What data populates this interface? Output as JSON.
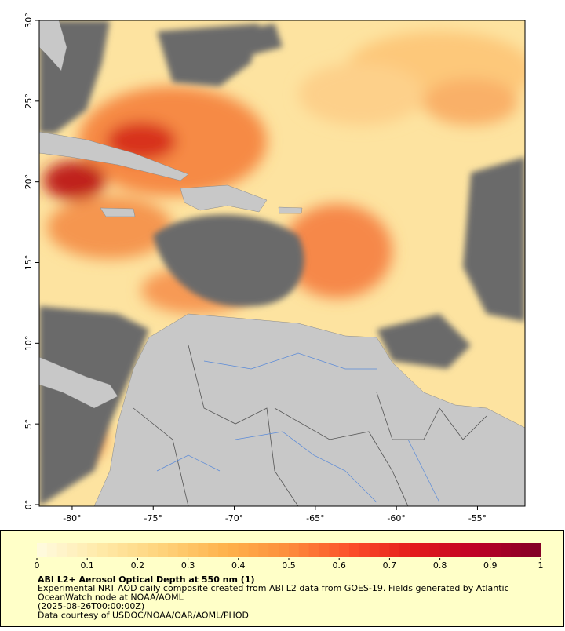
{
  "map": {
    "xlim": [
      -82.03,
      -52.07
    ],
    "ylim": [
      0,
      30
    ],
    "xticks": [
      {
        "value": -80,
        "label": "-80°"
      },
      {
        "value": -75,
        "label": "-75°"
      },
      {
        "value": -70,
        "label": "-70°"
      },
      {
        "value": -65,
        "label": "-65°"
      },
      {
        "value": -60,
        "label": "-60°"
      },
      {
        "value": -55,
        "label": "-55°"
      }
    ],
    "yticks": [
      {
        "value": 0,
        "label": "0°"
      },
      {
        "value": 5,
        "label": "5°"
      },
      {
        "value": 10,
        "label": "10°"
      },
      {
        "value": 15,
        "label": "15°"
      },
      {
        "value": 20,
        "label": "20°"
      },
      {
        "value": 25,
        "label": "25°"
      },
      {
        "value": 30,
        "label": "30°"
      }
    ]
  },
  "colorbar": {
    "clim": [
      0,
      1
    ],
    "steps": 50,
    "ticks": [
      0,
      0.1,
      0.2,
      0.3,
      0.4,
      0.5,
      0.6,
      0.7,
      0.8,
      0.9,
      1
    ],
    "colormap": [
      "#fffbe0",
      "#ffeaa8",
      "#fed27a",
      "#feb24c",
      "#fd8d3c",
      "#fc4e2a",
      "#e31a1c",
      "#bd0026",
      "#800026"
    ]
  },
  "caption": {
    "title": "ABI L2+ Aerosol Optical Depth at 550 nm (1)",
    "lines": [
      "Experimental NRT AOD daily composite created from ABI L2 data from GOES-19. Fields generated by Atlantic",
      "OceanWatch node at NOAA/AOML",
      "(2025-08-26T00:00:00Z)",
      "Data courtesy of USDOC/NOAA/OAR/AOML/PHOD"
    ]
  }
}
